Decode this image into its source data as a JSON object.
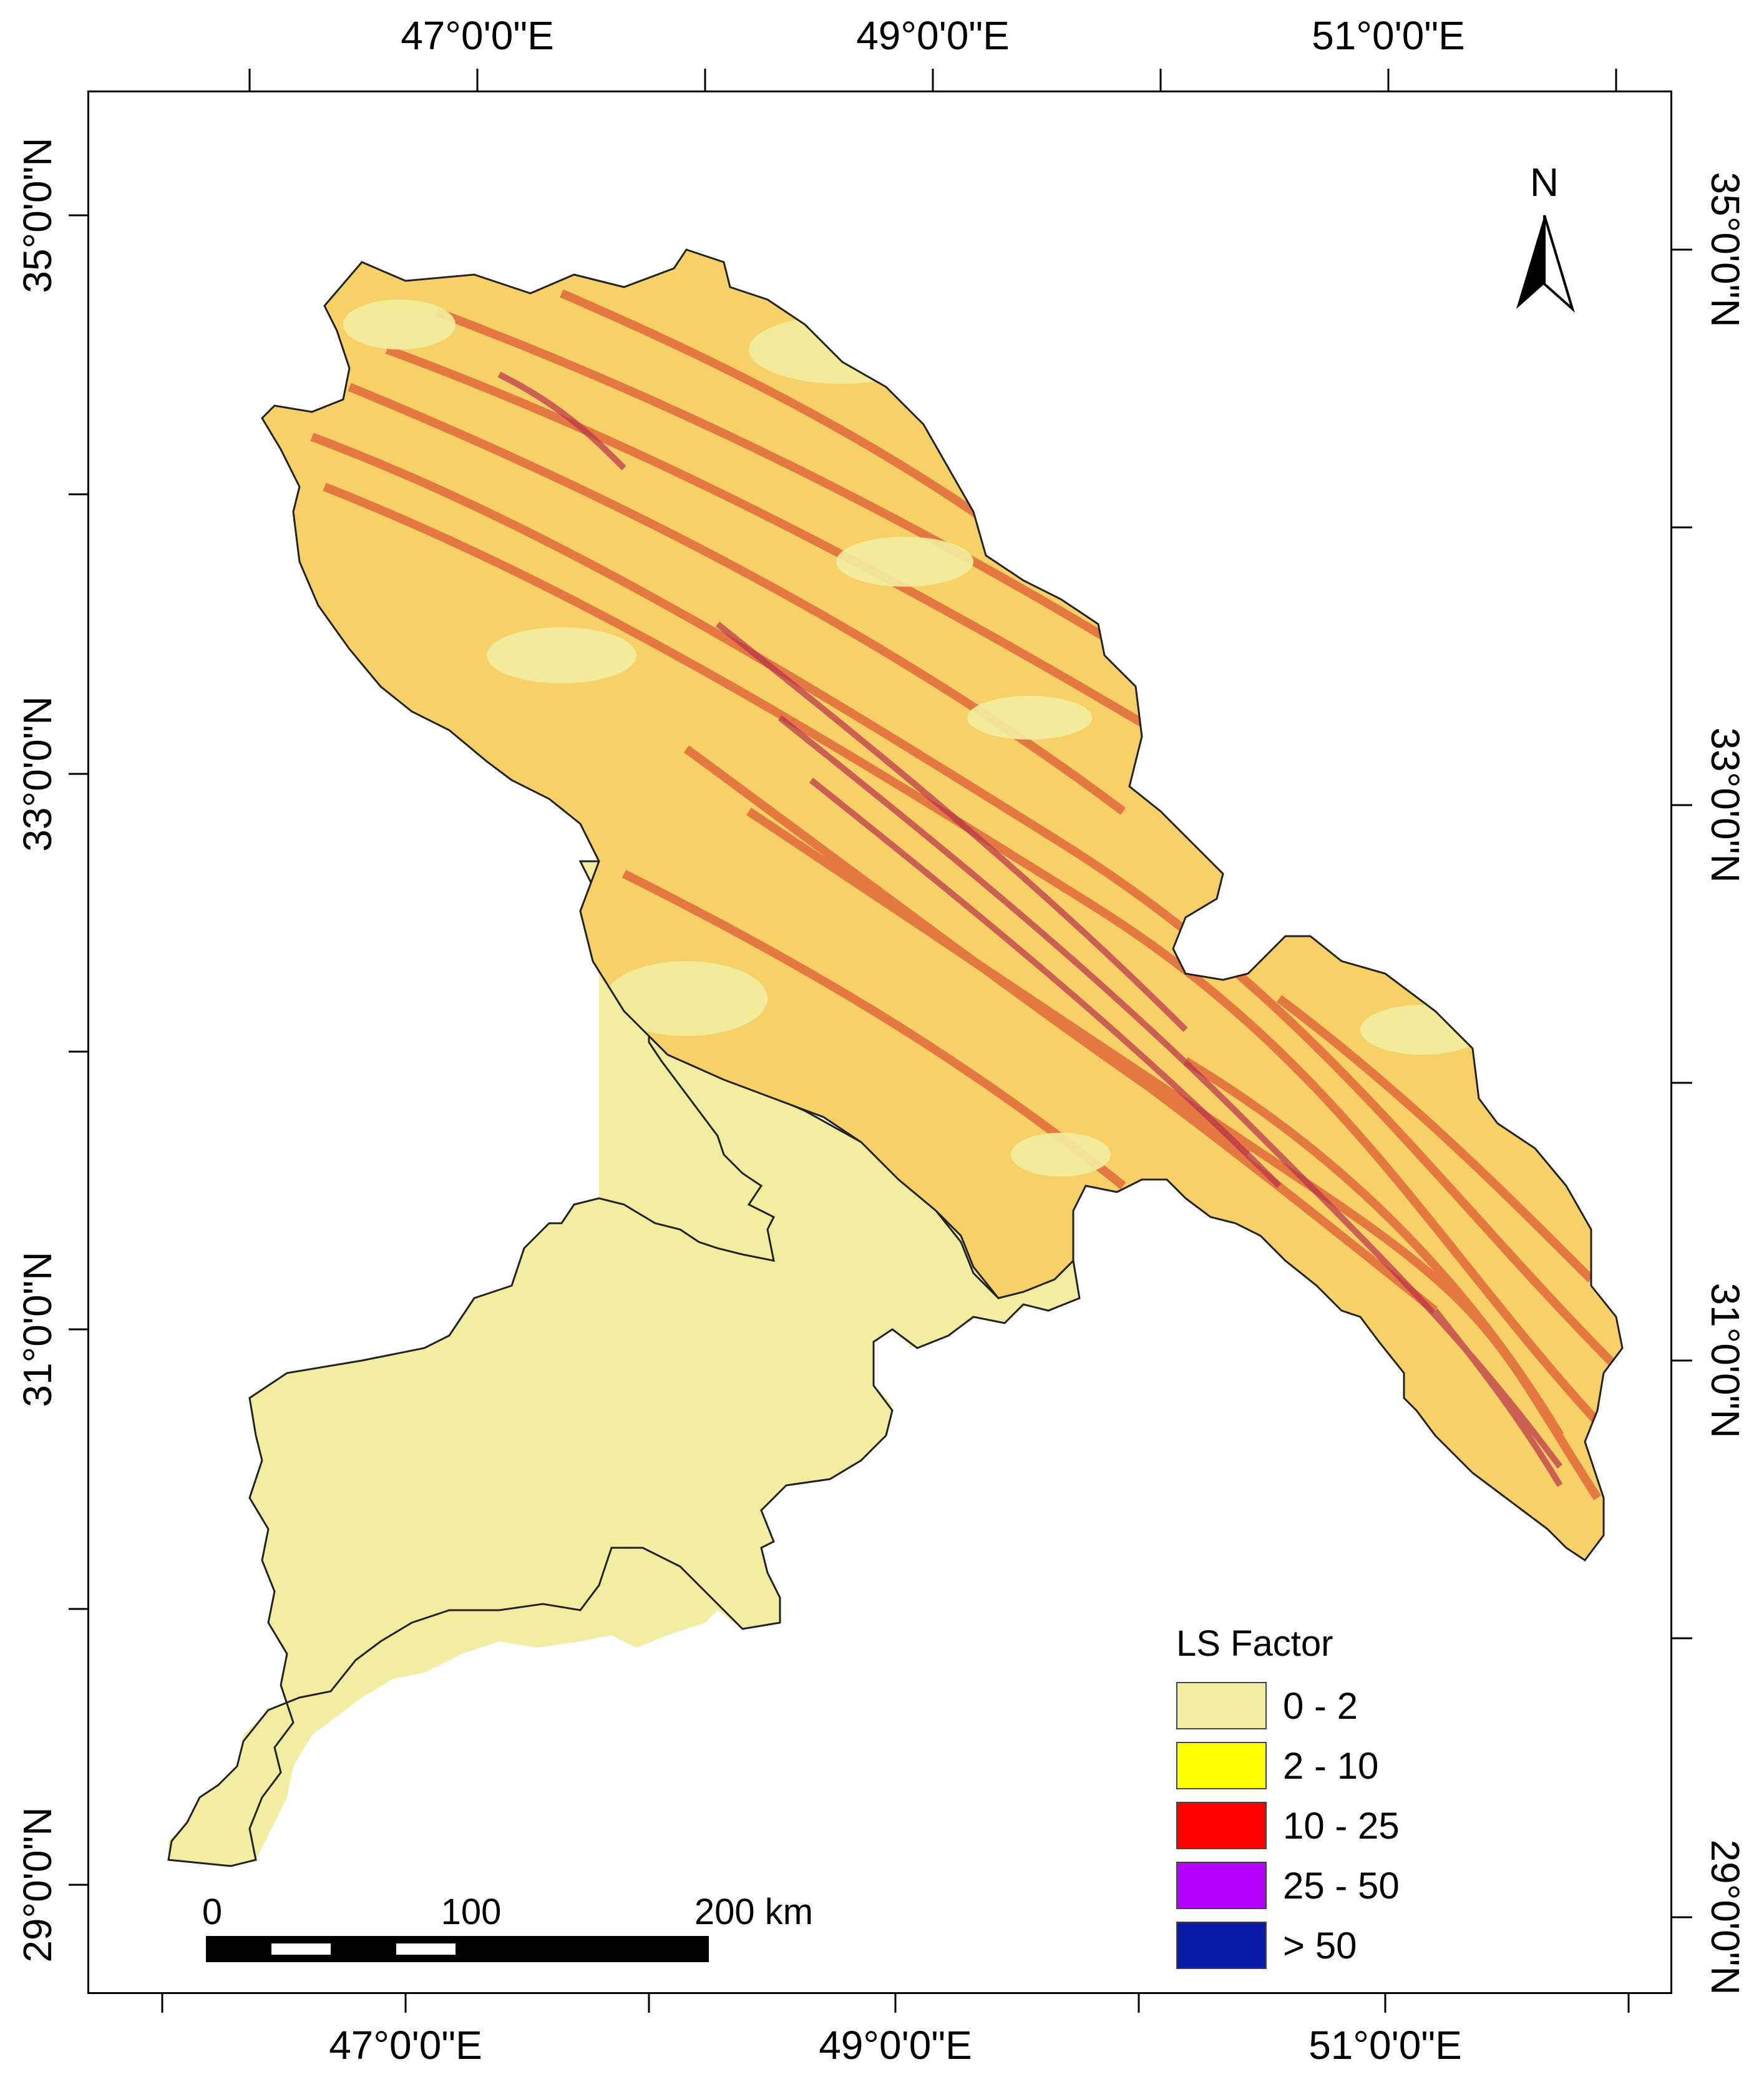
{
  "map": {
    "legend": {
      "title": "LS Factor",
      "items": [
        {
          "label": "0 - 2",
          "color": "#f2eda0"
        },
        {
          "label": "2 - 10",
          "color": "#ffff00"
        },
        {
          "label": "10 - 25",
          "color": "#ff0000"
        },
        {
          "label": "25 - 50",
          "color": "#b400ff"
        },
        {
          "label": "> 50",
          "color": "#0a1aa8"
        }
      ]
    },
    "axes": {
      "top": [
        "47°0'0\"E",
        "49°0'0\"E",
        "51°0'0\"E"
      ],
      "bottom": [
        "47°0'0\"E",
        "49°0'0\"E",
        "51°0'0\"E"
      ],
      "left": [
        "35°0'0\"N",
        "33°0'0\"N",
        "31°0'0\"N",
        "29°0'0\"N"
      ],
      "right": [
        "35°0'0\"N",
        "33°0'0\"N",
        "31°0'0\"N",
        "29°0'0\"N"
      ]
    },
    "scalebar": {
      "labels": [
        "0",
        "100",
        "200 km"
      ]
    },
    "north": {
      "letter": "N"
    },
    "colors": {
      "low": "#f2eda0",
      "mid": "#f7c84a",
      "high": "#e0683a",
      "steep": "#b8304a",
      "outline": "#222222"
    }
  }
}
